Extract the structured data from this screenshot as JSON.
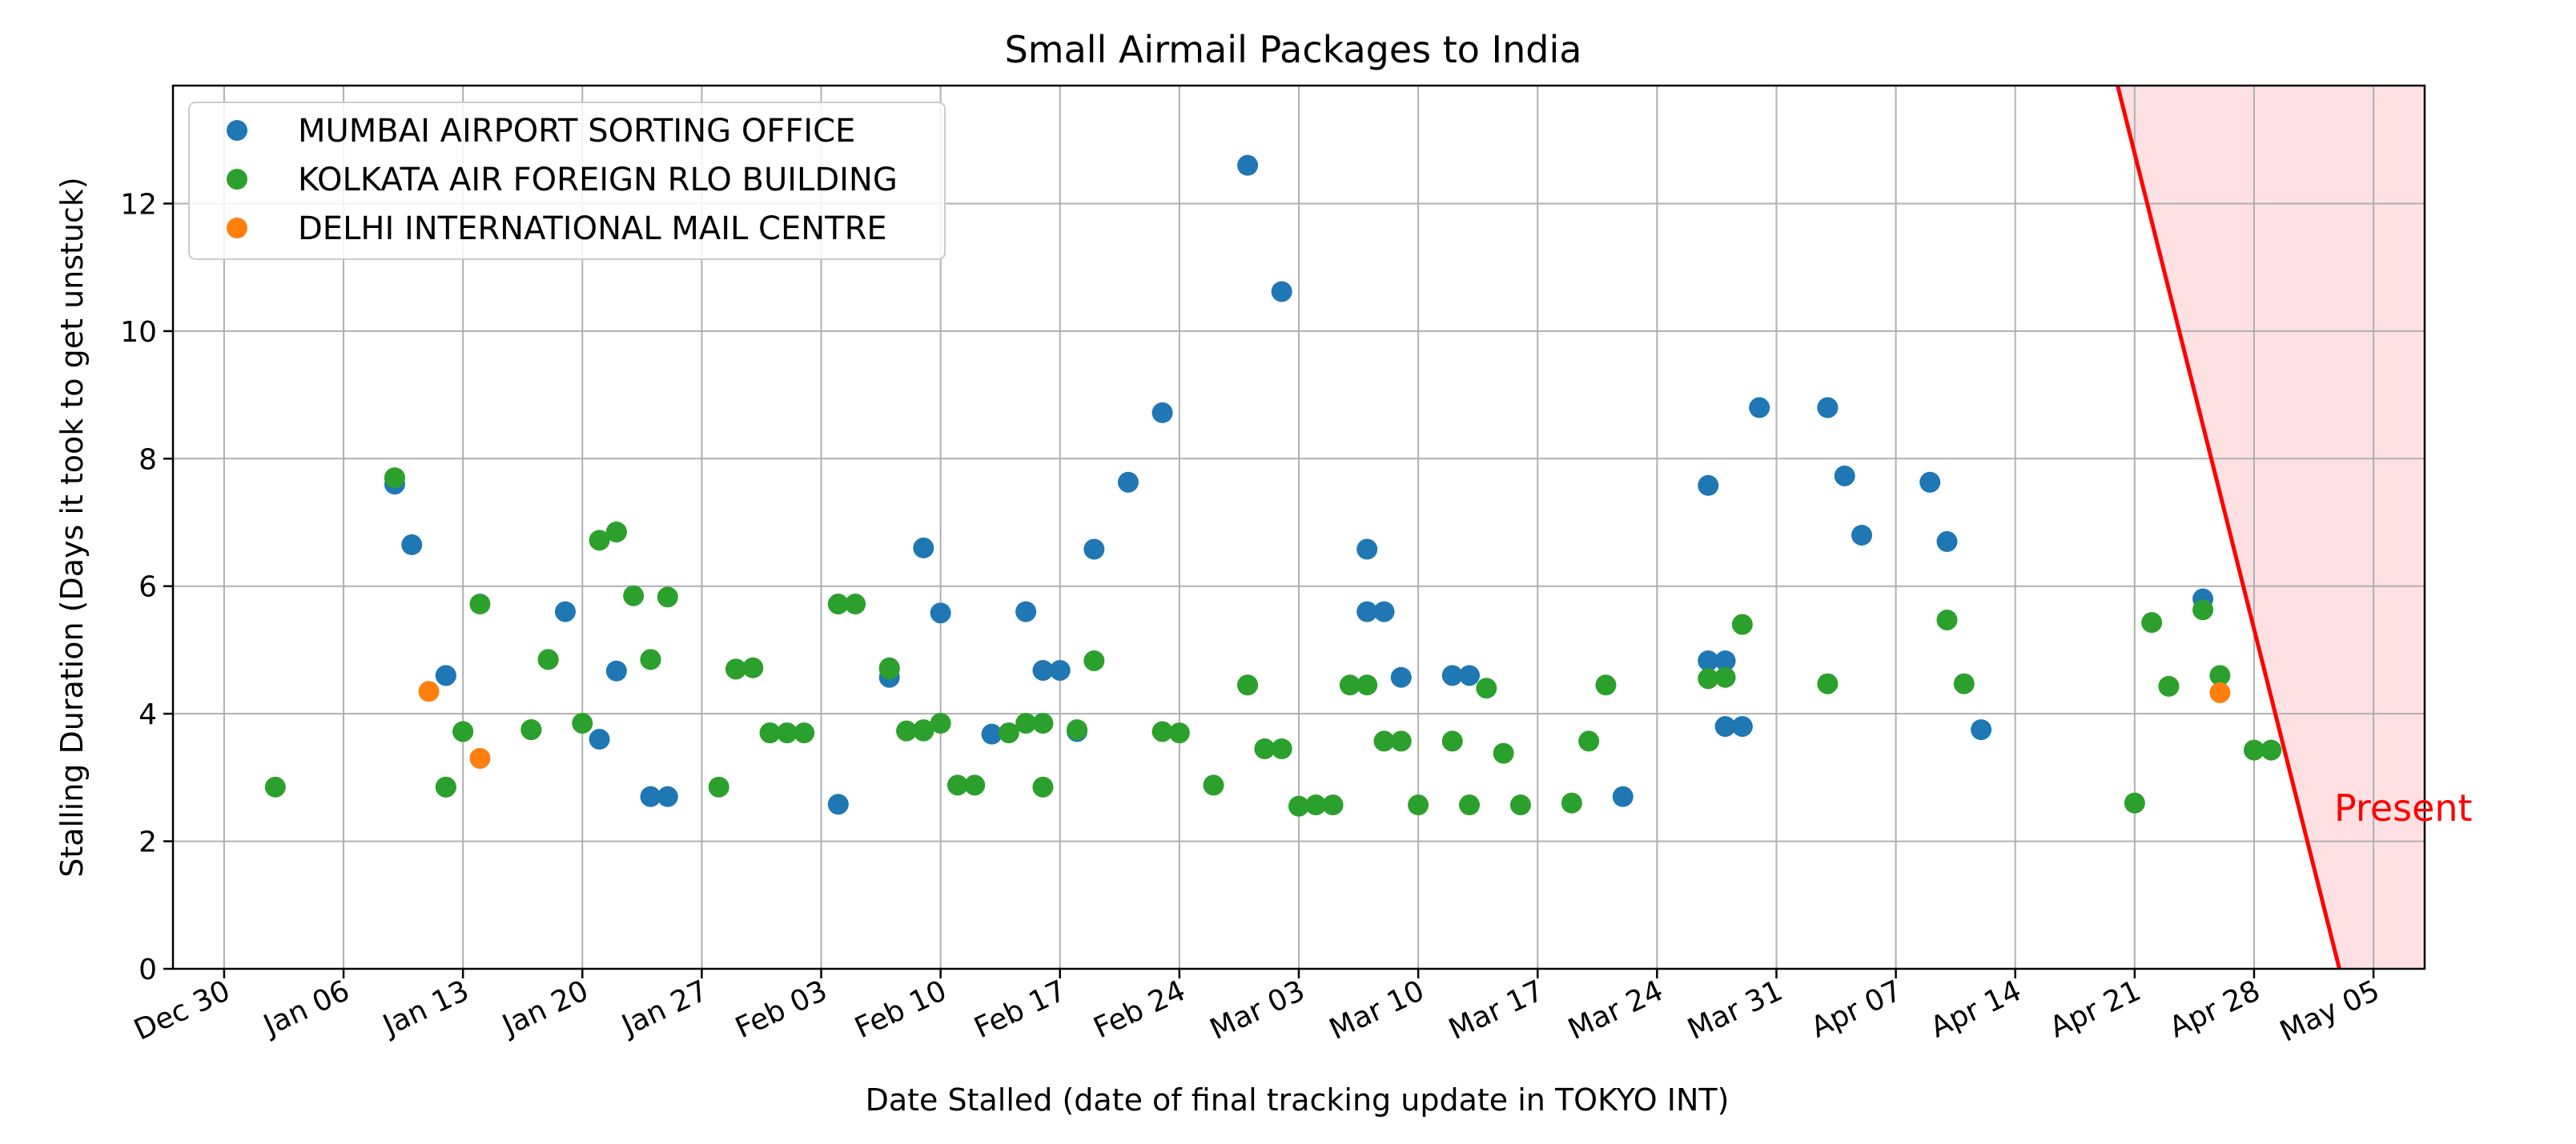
{
  "chart_data": {
    "type": "scatter",
    "title": "Small Airmail Packages to India",
    "xlabel": "Date Stalled (date of final tracking update in TOKYO INT)",
    "ylabel": "Stalling Duration (Days it took to get unstuck)",
    "x_axis": {
      "type": "date",
      "range": [
        "2018-12-27",
        "2019-05-08"
      ],
      "ticks": [
        {
          "date": "2018-12-30",
          "label": "Dec 30"
        },
        {
          "date": "2019-01-06",
          "label": "Jan 06"
        },
        {
          "date": "2019-01-13",
          "label": "Jan 13"
        },
        {
          "date": "2019-01-20",
          "label": "Jan 20"
        },
        {
          "date": "2019-01-27",
          "label": "Jan 27"
        },
        {
          "date": "2019-02-03",
          "label": "Feb 03"
        },
        {
          "date": "2019-02-10",
          "label": "Feb 10"
        },
        {
          "date": "2019-02-17",
          "label": "Feb 17"
        },
        {
          "date": "2019-02-24",
          "label": "Feb 24"
        },
        {
          "date": "2019-03-03",
          "label": "Mar 03"
        },
        {
          "date": "2019-03-10",
          "label": "Mar 10"
        },
        {
          "date": "2019-03-17",
          "label": "Mar 17"
        },
        {
          "date": "2019-03-24",
          "label": "Mar 24"
        },
        {
          "date": "2019-03-31",
          "label": "Mar 31"
        },
        {
          "date": "2019-04-07",
          "label": "Apr 07"
        },
        {
          "date": "2019-04-14",
          "label": "Apr 14"
        },
        {
          "date": "2019-04-21",
          "label": "Apr 21"
        },
        {
          "date": "2019-04-28",
          "label": "Apr 28"
        },
        {
          "date": "2019-05-05",
          "label": "May 05"
        }
      ]
    },
    "y_axis": {
      "range": [
        0,
        13.85
      ],
      "ticks": [
        {
          "value": 0,
          "label": "0"
        },
        {
          "value": 2,
          "label": "2"
        },
        {
          "value": 4,
          "label": "4"
        },
        {
          "value": 6,
          "label": "6"
        },
        {
          "value": 8,
          "label": "8"
        },
        {
          "value": 10,
          "label": "10"
        },
        {
          "value": 12,
          "label": "12"
        }
      ]
    },
    "grid": true,
    "legend": "upper-left",
    "series": [
      {
        "name": "MUMBAI AIRPORT SORTING OFFICE",
        "color": "#1f77b4",
        "points": [
          [
            "2019-01-09",
            7.6
          ],
          [
            "2019-01-10",
            6.65
          ],
          [
            "2019-01-12",
            4.6
          ],
          [
            "2019-01-12",
            4.6
          ],
          [
            "2019-01-19",
            5.6
          ],
          [
            "2019-01-21",
            3.6
          ],
          [
            "2019-01-22",
            4.67
          ],
          [
            "2019-01-24",
            2.7
          ],
          [
            "2019-01-25",
            2.7
          ],
          [
            "2019-02-04",
            2.58
          ],
          [
            "2019-02-07",
            4.57
          ],
          [
            "2019-02-09",
            6.6
          ],
          [
            "2019-02-10",
            5.58
          ],
          [
            "2019-02-13",
            3.68
          ],
          [
            "2019-02-15",
            5.6
          ],
          [
            "2019-02-16",
            4.68
          ],
          [
            "2019-02-17",
            4.68
          ],
          [
            "2019-02-18",
            3.72
          ],
          [
            "2019-02-19",
            6.58
          ],
          [
            "2019-02-21",
            7.63
          ],
          [
            "2019-02-23",
            8.72
          ],
          [
            "2019-02-28",
            12.6
          ],
          [
            "2019-03-02",
            10.62
          ],
          [
            "2019-03-07",
            6.58
          ],
          [
            "2019-03-07",
            5.6
          ],
          [
            "2019-03-08",
            5.6
          ],
          [
            "2019-03-09",
            4.57
          ],
          [
            "2019-03-12",
            4.6
          ],
          [
            "2019-03-13",
            4.6
          ],
          [
            "2019-03-22",
            2.7
          ],
          [
            "2019-03-27",
            7.58
          ],
          [
            "2019-03-27",
            4.83
          ],
          [
            "2019-03-28",
            4.83
          ],
          [
            "2019-03-28",
            3.8
          ],
          [
            "2019-03-29",
            3.8
          ],
          [
            "2019-03-30",
            8.8
          ],
          [
            "2019-04-03",
            8.8
          ],
          [
            "2019-04-03",
            8.8
          ],
          [
            "2019-04-04",
            7.73
          ],
          [
            "2019-04-05",
            6.8
          ],
          [
            "2019-04-09",
            7.63
          ],
          [
            "2019-04-10",
            6.7
          ],
          [
            "2019-04-12",
            3.75
          ],
          [
            "2019-04-25",
            5.8
          ]
        ]
      },
      {
        "name": "KOLKATA AIR FOREIGN RLO BUILDING",
        "color": "#2ca02c",
        "points": [
          [
            "2019-01-02",
            2.85
          ],
          [
            "2019-01-09",
            7.7
          ],
          [
            "2019-01-09",
            7.7
          ],
          [
            "2019-01-12",
            2.85
          ],
          [
            "2019-01-12",
            2.85
          ],
          [
            "2019-01-13",
            3.72
          ],
          [
            "2019-01-13",
            3.72
          ],
          [
            "2019-01-14",
            5.72
          ],
          [
            "2019-01-17",
            3.75
          ],
          [
            "2019-01-17",
            3.75
          ],
          [
            "2019-01-18",
            4.85
          ],
          [
            "2019-01-18",
            4.85
          ],
          [
            "2019-01-20",
            3.85
          ],
          [
            "2019-01-21",
            6.72
          ],
          [
            "2019-01-22",
            6.85
          ],
          [
            "2019-01-22",
            6.85
          ],
          [
            "2019-01-23",
            5.85
          ],
          [
            "2019-01-24",
            4.85
          ],
          [
            "2019-01-24",
            4.85
          ],
          [
            "2019-01-25",
            5.83
          ],
          [
            "2019-01-28",
            2.85
          ],
          [
            "2019-01-29",
            4.7
          ],
          [
            "2019-01-29",
            4.7
          ],
          [
            "2019-01-30",
            4.72
          ],
          [
            "2019-01-31",
            3.7
          ],
          [
            "2019-01-31",
            3.7
          ],
          [
            "2019-02-01",
            3.7
          ],
          [
            "2019-02-02",
            3.7
          ],
          [
            "2019-02-04",
            5.72
          ],
          [
            "2019-02-05",
            5.72
          ],
          [
            "2019-02-07",
            4.7
          ],
          [
            "2019-02-07",
            4.72
          ],
          [
            "2019-02-08",
            3.73
          ],
          [
            "2019-02-09",
            3.73
          ],
          [
            "2019-02-09",
            3.75
          ],
          [
            "2019-02-10",
            3.85
          ],
          [
            "2019-02-11",
            2.88
          ],
          [
            "2019-02-12",
            2.88
          ],
          [
            "2019-02-14",
            3.7
          ],
          [
            "2019-02-15",
            3.85
          ],
          [
            "2019-02-16",
            2.85
          ],
          [
            "2019-02-16",
            3.85
          ],
          [
            "2019-02-18",
            3.75
          ],
          [
            "2019-02-19",
            4.83
          ],
          [
            "2019-02-23",
            3.72
          ],
          [
            "2019-02-24",
            3.7
          ],
          [
            "2019-02-26",
            2.88
          ],
          [
            "2019-02-28",
            4.45
          ],
          [
            "2019-02-28",
            4.45
          ],
          [
            "2019-03-01",
            3.45
          ],
          [
            "2019-03-02",
            3.45
          ],
          [
            "2019-03-03",
            2.55
          ],
          [
            "2019-03-04",
            2.57
          ],
          [
            "2019-03-05",
            2.57
          ],
          [
            "2019-03-06",
            4.45
          ],
          [
            "2019-03-07",
            4.45
          ],
          [
            "2019-03-08",
            3.57
          ],
          [
            "2019-03-09",
            3.57
          ],
          [
            "2019-03-10",
            2.57
          ],
          [
            "2019-03-12",
            3.57
          ],
          [
            "2019-03-13",
            2.57
          ],
          [
            "2019-03-14",
            4.4
          ],
          [
            "2019-03-15",
            3.38
          ],
          [
            "2019-03-16",
            2.57
          ],
          [
            "2019-03-19",
            2.6
          ],
          [
            "2019-03-20",
            3.57
          ],
          [
            "2019-03-21",
            4.45
          ],
          [
            "2019-03-27",
            4.55
          ],
          [
            "2019-03-28",
            4.57
          ],
          [
            "2019-03-29",
            5.4
          ],
          [
            "2019-04-03",
            4.47
          ],
          [
            "2019-04-10",
            5.47
          ],
          [
            "2019-04-11",
            4.47
          ],
          [
            "2019-04-21",
            2.6
          ],
          [
            "2019-04-22",
            5.43
          ],
          [
            "2019-04-23",
            4.43
          ],
          [
            "2019-04-25",
            5.63
          ],
          [
            "2019-04-26",
            4.6
          ],
          [
            "2019-04-28",
            3.43
          ],
          [
            "2019-04-29",
            3.43
          ]
        ]
      },
      {
        "name": "DELHI INTERNATIONAL MAIL CENTRE",
        "color": "#ff7f0e",
        "points": [
          [
            "2019-01-11",
            4.35
          ],
          [
            "2019-01-14",
            3.3
          ],
          [
            "2019-04-26",
            4.33
          ]
        ]
      }
    ],
    "present_marker": {
      "label": "Present",
      "color": "#ff0000",
      "shade_color": "#ffe1e4",
      "line_from": [
        "2019-04-20",
        13.85
      ],
      "line_to": [
        "2019-05-03",
        0
      ]
    }
  }
}
